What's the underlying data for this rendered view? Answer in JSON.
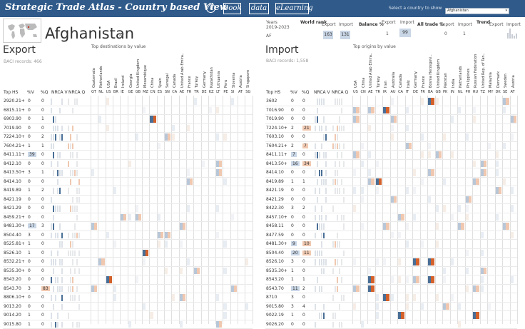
{
  "app": {
    "title": "Strategic Trade Atlas - Country based View",
    "info_icon": "i",
    "nav": [
      "book",
      "data",
      "eLearning"
    ],
    "select_label": "Select a country to show",
    "selected_country": "Afghanistan"
  },
  "country": {
    "name": "Afghanistan",
    "code": "AF",
    "years_label": "Years",
    "years_value": "2019-2023",
    "row_code": "AF",
    "world_rank_label": "World rank",
    "export_label": "Export",
    "import_label": "Import",
    "world_rank_export": "163",
    "world_rank_import": "131",
    "balance_label": "Balance %",
    "balance_export": "1",
    "balance_import": "99",
    "all_trade_label": "All trade %",
    "all_trade_export": "0",
    "all_trade_import": "1",
    "trend_label": "Trend"
  },
  "export": {
    "title": "Export",
    "records": "BACI records: 466",
    "destinations_label": "Top destinations by value",
    "columns": [
      "Top HS",
      "%V",
      "%Q",
      "NRCA V",
      "NRCA Q"
    ],
    "countries": [
      "Guatemala",
      "Netherlands",
      "USA",
      "Brazil",
      "Ireland",
      "Georgia",
      "United Kingdom",
      "Mozambique",
      "China",
      "Spain",
      "Senegal",
      "Canada",
      "United Arab Emira..",
      "France",
      "Turkey",
      "Germany",
      "Kazakhstan",
      "Lithuania",
      "Peru",
      "Slovenia",
      "Austria",
      "Singapore"
    ],
    "codes": [
      "GT",
      "NL",
      "US",
      "BR",
      "IE",
      "GE",
      "GB",
      "MZ",
      "CN",
      "ES",
      "SN",
      "CA",
      "AE",
      "FR",
      "TR",
      "DE",
      "KZ",
      "LT",
      "PE",
      "SI",
      "AT",
      "SG"
    ],
    "rows": [
      {
        "hs": "2920.21+",
        "v": "0",
        "q": "0"
      },
      {
        "hs": "6815.11+",
        "v": "0",
        "q": "0"
      },
      {
        "hs": "6903.90",
        "v": "0",
        "q": "1"
      },
      {
        "hs": "7019.90",
        "v": "0",
        "q": "0"
      },
      {
        "hs": "7224.10+",
        "v": "0",
        "q": "2"
      },
      {
        "hs": "7604.21+",
        "v": "1",
        "q": "1"
      },
      {
        "hs": "8411.11+",
        "v": "39",
        "q": "0"
      },
      {
        "hs": "8412.10",
        "v": "0",
        "q": "0"
      },
      {
        "hs": "8413.50+",
        "v": "3",
        "q": "1"
      },
      {
        "hs": "8414.10",
        "v": "0",
        "q": "0"
      },
      {
        "hs": "8419.89",
        "v": "1",
        "q": "2"
      },
      {
        "hs": "8421.19",
        "v": "0",
        "q": "0"
      },
      {
        "hs": "8421.29",
        "v": "0",
        "q": "0"
      },
      {
        "hs": "8459.21+",
        "v": "0",
        "q": "0"
      },
      {
        "hs": "8481.30+",
        "v": "17",
        "q": "3"
      },
      {
        "hs": "8504.40",
        "v": "3",
        "q": "0"
      },
      {
        "hs": "8525.81+",
        "v": "1",
        "q": "0"
      },
      {
        "hs": "8526.10",
        "v": "1",
        "q": "0"
      },
      {
        "hs": "8532.21+",
        "v": "0",
        "q": "0"
      },
      {
        "hs": "8535.30+",
        "v": "0",
        "q": "0"
      },
      {
        "hs": "8543.20",
        "v": "0",
        "q": "0"
      },
      {
        "hs": "8543.70",
        "v": "3",
        "q": "83"
      },
      {
        "hs": "8806.10+",
        "v": "0",
        "q": "0"
      },
      {
        "hs": "9013.20",
        "v": "0",
        "q": "0"
      },
      {
        "hs": "9014.20",
        "v": "1",
        "q": "0"
      },
      {
        "hs": "9015.80",
        "v": "1",
        "q": "0"
      },
      {
        "hs": "9026.20",
        "v": "18",
        "q": "0"
      }
    ]
  },
  "import": {
    "title": "Import",
    "records": "BACI records: 1,558",
    "origins_label": "Top origins by value",
    "columns": [
      "Top HS",
      "%V",
      "%Q",
      "NRCA V",
      "NRCA Q"
    ],
    "countries": [
      "USA",
      "China",
      "United Arab Emira..",
      "Turkey",
      "Iran",
      "Australia",
      "Canada",
      "Italy",
      "Germany",
      "France",
      "Bosnia Herzegovi..",
      "United Kingdom",
      "Pakistan",
      "India",
      "Netherlands",
      "Philippines",
      "Russian Federation",
      "United Rep. of Tan..",
      "Malaysia",
      "Denmark",
      "Sweden",
      "Austria"
    ],
    "codes": [
      "US",
      "CN",
      "AE",
      "TR",
      "IR",
      "AU",
      "CA",
      "IT",
      "DE",
      "FR",
      "BA",
      "GB",
      "PK",
      "IN",
      "NL",
      "PH",
      "RU",
      "TZ",
      "MY",
      "DK",
      "SE",
      "AT"
    ],
    "rows": [
      {
        "hs": "3602",
        "v": "0",
        "q": "0"
      },
      {
        "hs": "7016.90",
        "v": "0",
        "q": "0"
      },
      {
        "hs": "7019.90",
        "v": "0",
        "q": "0"
      },
      {
        "hs": "7224.10+",
        "v": "2",
        "q": "21"
      },
      {
        "hs": "7603.10",
        "v": "0",
        "q": "0"
      },
      {
        "hs": "7604.21+",
        "v": "2",
        "q": "7"
      },
      {
        "hs": "8411.11+",
        "v": "7",
        "q": "0"
      },
      {
        "hs": "8413.50+",
        "v": "16",
        "q": "34"
      },
      {
        "hs": "8414.10",
        "v": "0",
        "q": "0"
      },
      {
        "hs": "8419.89",
        "v": "1",
        "q": "1"
      },
      {
        "hs": "8421.19",
        "v": "0",
        "q": "0"
      },
      {
        "hs": "8421.29",
        "v": "0",
        "q": "0"
      },
      {
        "hs": "8422.30",
        "v": "3",
        "q": "2"
      },
      {
        "hs": "8457.10+",
        "v": "0",
        "q": "0"
      },
      {
        "hs": "8458.11",
        "v": "0",
        "q": "0"
      },
      {
        "hs": "8477.59",
        "v": "0",
        "q": "0"
      },
      {
        "hs": "8481.30+",
        "v": "9",
        "q": "10"
      },
      {
        "hs": "8504.40",
        "v": "20",
        "q": "11"
      },
      {
        "hs": "8526.10",
        "v": "3",
        "q": "0"
      },
      {
        "hs": "8535.30+",
        "v": "1",
        "q": "0"
      },
      {
        "hs": "8543.20",
        "v": "1",
        "q": "1"
      },
      {
        "hs": "8543.70",
        "v": "11",
        "q": "2"
      },
      {
        "hs": "8710",
        "v": "3",
        "q": "0"
      },
      {
        "hs": "9015.80",
        "v": "3",
        "q": "4"
      },
      {
        "hs": "9022.19",
        "v": "1",
        "q": "0"
      },
      {
        "hs": "9026.20",
        "v": "0",
        "q": "0"
      },
      {
        "hs": "9031.80",
        "v": "5",
        "q": "0"
      },
      {
        "hs": "9301.10+",
        "v": "3",
        "q": "0"
      }
    ]
  },
  "colors": {
    "header_bg": "#2f5a8a",
    "highlight_blue": "#c9d6e6",
    "cell_dark_blue": "#4a6f96",
    "cell_orange": "#d4602a",
    "cell_light_blue": "#b8c7d8",
    "cell_light_orange": "#f0c8b0"
  }
}
